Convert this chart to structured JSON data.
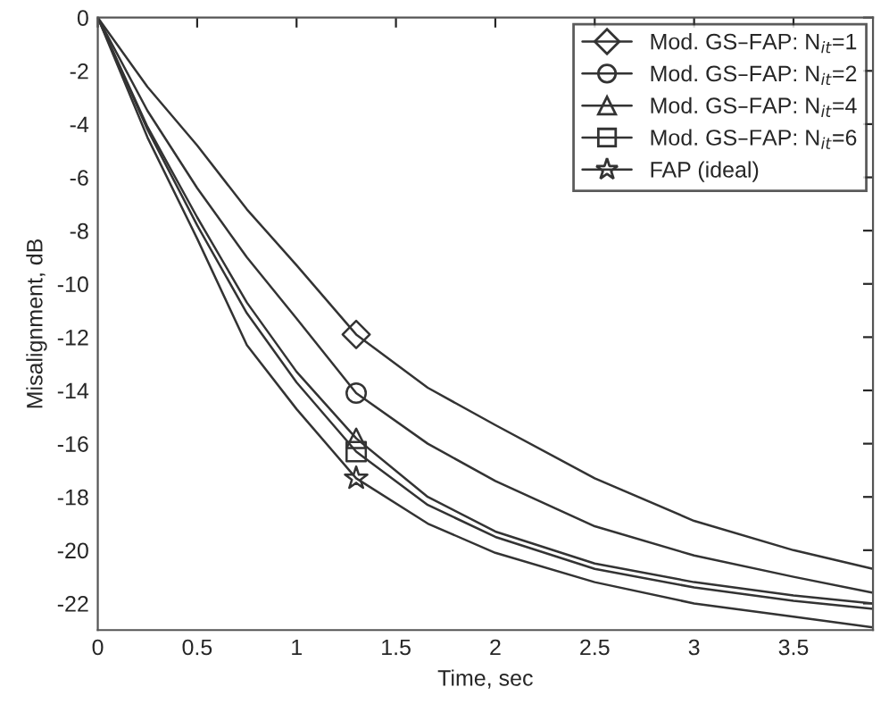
{
  "chart_data": {
    "type": "line",
    "xlabel": "Time, sec",
    "ylabel": "Misalignment, dB",
    "xlim": [
      0,
      3.9
    ],
    "ylim": [
      -23,
      0
    ],
    "xticks": [
      0,
      0.5,
      1,
      1.5,
      2,
      2.5,
      3,
      3.5
    ],
    "yticks": [
      0,
      -2,
      -4,
      -6,
      -8,
      -10,
      -12,
      -14,
      -16,
      -18,
      -20,
      -22
    ],
    "grid": false,
    "legend": "top right",
    "line_style": "solid",
    "series": [
      {
        "name": "Mod. GS–FAP: N$_{it}$=1",
        "color": "#333333",
        "x": [
          0,
          0.25,
          0.5,
          0.75,
          1.0,
          1.3,
          1.66,
          2.0,
          2.5,
          3.0,
          3.5,
          3.9
        ],
        "values": [
          0,
          -2.6,
          -4.8,
          -7.2,
          -9.3,
          -11.9,
          -13.9,
          -15.3,
          -17.3,
          -18.9,
          -20.0,
          -20.7
        ]
      },
      {
        "name": "Mod. GS–FAP: N$_{it}$=2",
        "color": "#333333",
        "x": [
          0,
          0.25,
          0.5,
          0.75,
          1.0,
          1.3,
          1.66,
          2.0,
          2.5,
          3.0,
          3.5,
          3.9
        ],
        "values": [
          0,
          -3.5,
          -6.4,
          -9.0,
          -11.3,
          -14.1,
          -16.0,
          -17.4,
          -19.1,
          -20.2,
          -21.0,
          -21.6
        ]
      },
      {
        "name": "Mod. GS–FAP: N$_{it}$=4",
        "color": "#333333",
        "x": [
          0,
          0.25,
          0.5,
          0.75,
          1.0,
          1.3,
          1.66,
          2.0,
          2.5,
          3.0,
          3.5,
          3.9
        ],
        "values": [
          0,
          -4.1,
          -7.5,
          -10.7,
          -13.3,
          -15.8,
          -18.0,
          -19.3,
          -20.5,
          -21.2,
          -21.7,
          -22.0
        ]
      },
      {
        "name": "Mod. GS–FAP: N$_{it}$=6",
        "color": "#333333",
        "x": [
          0,
          0.25,
          0.5,
          0.75,
          1.0,
          1.3,
          1.66,
          2.0,
          2.5,
          3.0,
          3.5,
          3.9
        ],
        "values": [
          0,
          -4.2,
          -7.8,
          -11.1,
          -13.7,
          -16.3,
          -18.3,
          -19.5,
          -20.7,
          -21.4,
          -21.9,
          -22.2
        ]
      },
      {
        "name": "FAP (ideal)",
        "color": "#333333",
        "x": [
          0,
          0.25,
          0.5,
          0.75,
          1.0,
          1.3,
          1.66,
          2.0,
          2.5,
          3.0,
          3.5,
          3.9
        ],
        "values": [
          0,
          -4.5,
          -8.3,
          -12.3,
          -14.7,
          -17.3,
          -19.0,
          -20.1,
          -21.2,
          -22.0,
          -22.5,
          -22.9
        ]
      },
      {
        "type": "scatter",
        "color": "#333333",
        "marker": "diamond",
        "x": [
          1.3
        ],
        "values": [
          -11.9
        ]
      },
      {
        "type": "scatter",
        "color": "#333333",
        "marker": "circle",
        "x": [
          1.3
        ],
        "values": [
          -14.1
        ]
      },
      {
        "type": "scatter",
        "color": "#333333",
        "marker": "triangle",
        "x": [
          1.3
        ],
        "values": [
          -15.8
        ]
      },
      {
        "type": "scatter",
        "color": "#333333",
        "marker": "square",
        "x": [
          1.3
        ],
        "values": [
          -16.3
        ]
      },
      {
        "type": "scatter",
        "color": "#333333",
        "marker": "star",
        "x": [
          1.3
        ],
        "values": [
          -17.3
        ]
      }
    ]
  }
}
